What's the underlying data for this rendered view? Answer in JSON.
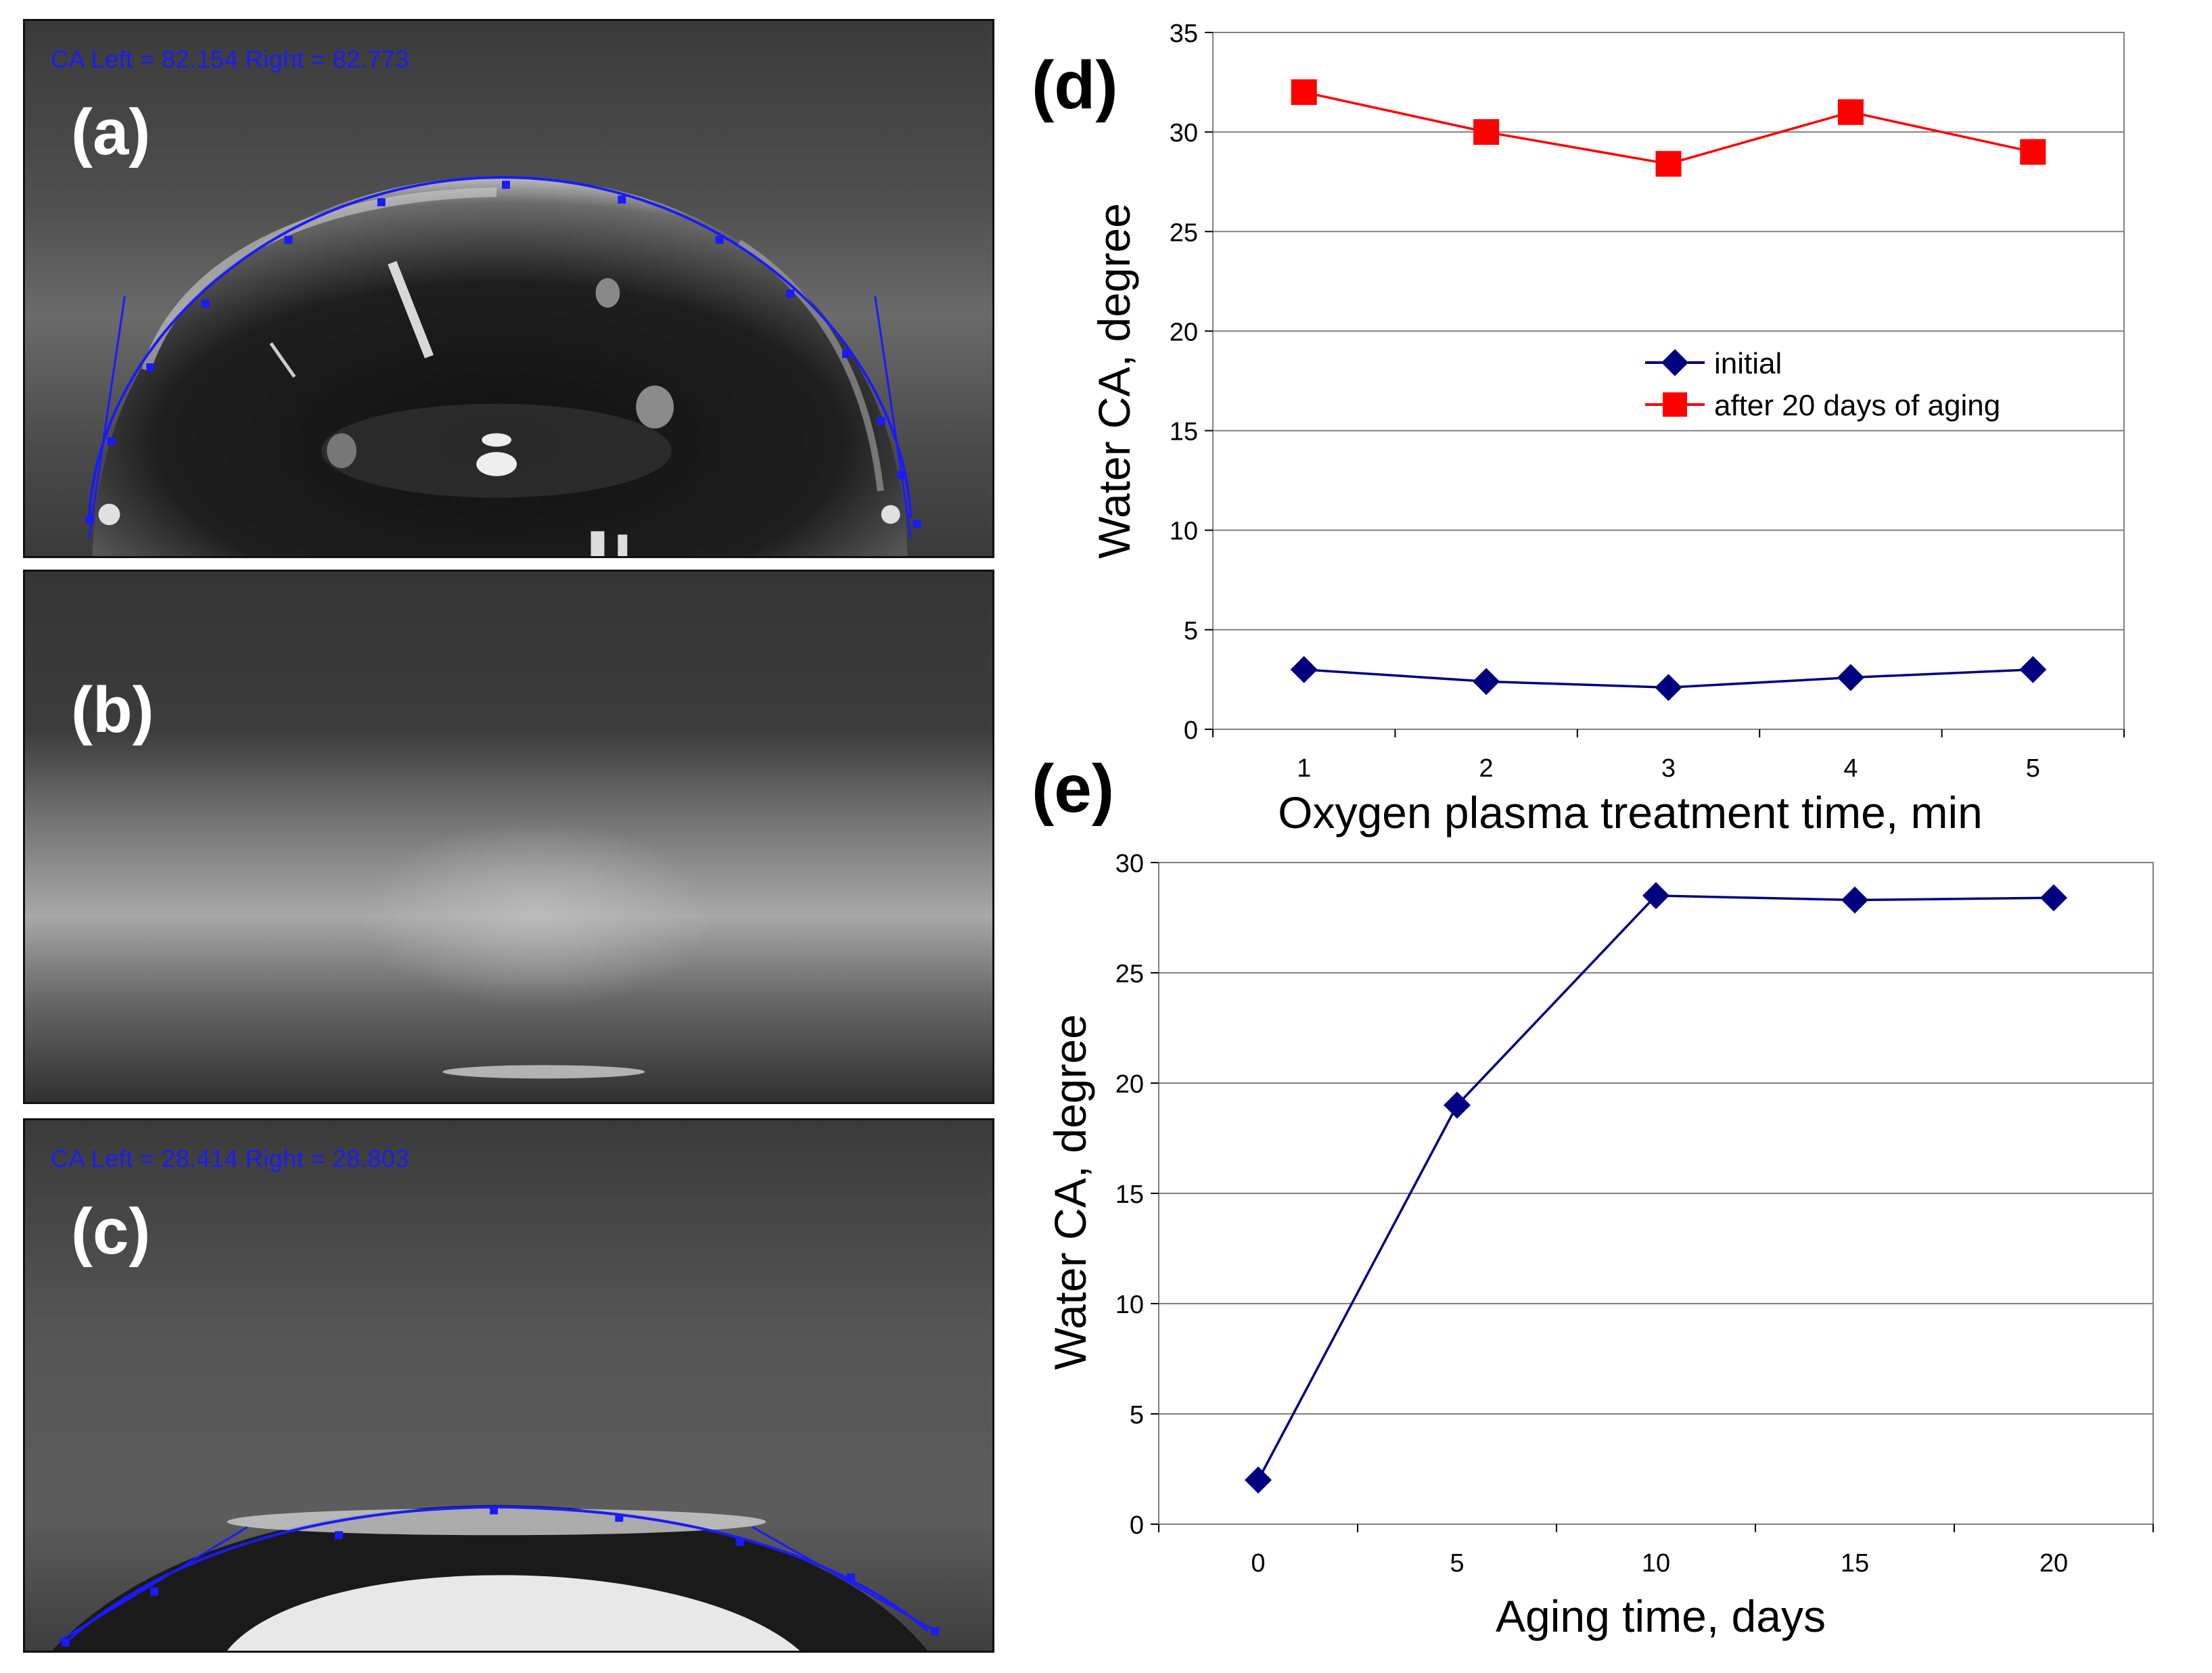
{
  "panels": {
    "a": {
      "label": "(a)",
      "ca_text": "CA Left = 82.154 Right = 82.773"
    },
    "b": {
      "label": "(b)"
    },
    "c": {
      "label": "(c)",
      "ca_text": "CA Left = 28.414 Right = 28.803"
    }
  },
  "colors": {
    "initial": "#000080",
    "aged": "#ff0000",
    "grid": "#808080",
    "fit_line": "#1a1aff"
  },
  "chart_data": [
    {
      "panel": "(d)",
      "type": "line",
      "title": "",
      "xlabel": "Oxygen plasma treatment time, min",
      "ylabel": "Water CA, degree",
      "categories": [
        "1",
        "2",
        "3",
        "4",
        "5"
      ],
      "ylim": [
        0,
        35
      ],
      "yticks": [
        "0",
        "5",
        "10",
        "15",
        "20",
        "25",
        "30",
        "35"
      ],
      "grid": true,
      "legend_position": "center-right",
      "series": [
        {
          "name": "initial",
          "marker": "diamond",
          "color": "#000080",
          "values": [
            3.0,
            2.4,
            2.1,
            2.6,
            3.0
          ]
        },
        {
          "name": "after 20 days of aging",
          "marker": "square",
          "color": "#ff0000",
          "values": [
            32.0,
            30.0,
            28.4,
            31.0,
            29.0
          ]
        }
      ]
    },
    {
      "panel": "(e)",
      "type": "line",
      "title": "",
      "xlabel": "Aging time, days",
      "ylabel": "Water CA, degree",
      "categories": [
        "0",
        "5",
        "10",
        "15",
        "20"
      ],
      "ylim": [
        0,
        30
      ],
      "yticks": [
        "0",
        "5",
        "10",
        "15",
        "20",
        "25",
        "30"
      ],
      "grid": true,
      "series": [
        {
          "name": "Water CA",
          "marker": "diamond",
          "color": "#000080",
          "values": [
            2.0,
            19.0,
            28.5,
            28.3,
            28.4
          ]
        }
      ]
    }
  ]
}
